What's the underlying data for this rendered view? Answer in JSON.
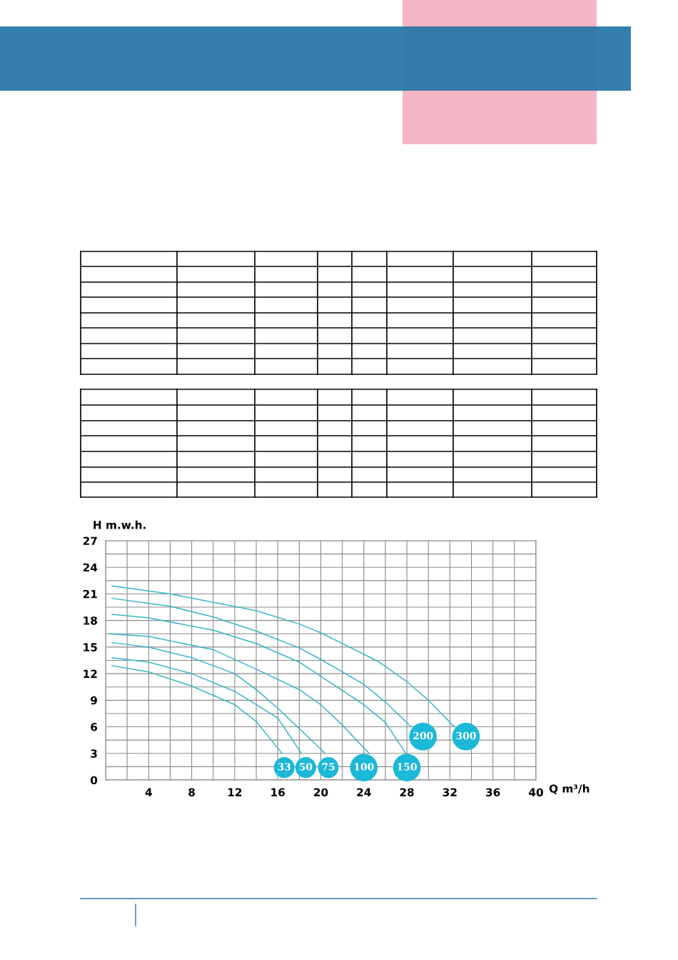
{
  "chart_data": {
    "type": "line",
    "ylabel": "H m.w.h.",
    "xlabel": "Q m³/h",
    "xlim": [
      0,
      40
    ],
    "ylim": [
      0,
      27
    ],
    "xticks": [
      4,
      8,
      12,
      16,
      20,
      24,
      28,
      32,
      36,
      40
    ],
    "yticks": [
      0,
      3,
      6,
      9,
      12,
      15,
      18,
      21,
      24,
      27
    ],
    "grid": true,
    "marker": "none",
    "line_style": "solid",
    "series": [
      {
        "color": "#3bb5c6",
        "x": [
          0.6,
          4,
          8,
          12,
          14,
          16.4
        ],
        "values": [
          12.9,
          12.2,
          10.6,
          8.5,
          6.6,
          3.0
        ]
      },
      {
        "color": "#3bb5c6",
        "x": [
          0.6,
          4,
          8,
          12,
          16,
          18.2
        ],
        "values": [
          13.8,
          13.3,
          12.0,
          10.0,
          7.0,
          3.0
        ]
      },
      {
        "color": "#3bb5c6",
        "x": [
          0.6,
          4,
          8,
          12,
          14,
          16,
          18,
          20.4
        ],
        "values": [
          15.5,
          15.0,
          13.8,
          12.0,
          10.2,
          8.1,
          5.8,
          3.0
        ]
      },
      {
        "color": "#3bb5c6",
        "x": [
          0.3,
          4,
          10,
          14,
          18,
          20,
          22,
          24.5
        ],
        "values": [
          16.5,
          16.2,
          14.7,
          12.5,
          10.2,
          8.5,
          6.2,
          3.0
        ]
      },
      {
        "color": "#3bb5c6",
        "x": [
          0.6,
          4,
          10,
          14,
          18,
          20,
          22,
          24,
          26,
          27.9
        ],
        "values": [
          18.7,
          18.3,
          16.9,
          15.4,
          13.3,
          11.7,
          10.1,
          8.5,
          6.5,
          3.0
        ]
      },
      {
        "color": "#3bb5c6",
        "x": [
          0.6,
          6,
          10,
          14,
          18,
          20,
          22,
          24,
          26,
          28.4
        ],
        "values": [
          20.5,
          19.6,
          18.4,
          16.8,
          14.9,
          13.6,
          12.2,
          10.8,
          8.8,
          6.0
        ]
      },
      {
        "color": "#3bb5c6",
        "x": [
          0.6,
          6,
          14,
          18,
          20,
          22,
          25.3,
          27.9,
          30,
          32.4
        ],
        "values": [
          21.9,
          21.0,
          19.1,
          17.6,
          16.6,
          15.4,
          13.4,
          11.2,
          9.0,
          6.0
        ]
      }
    ],
    "annotations": [
      {
        "text": "33",
        "x": 16.6,
        "y": 1.4
      },
      {
        "text": "50",
        "x": 18.6,
        "y": 1.4
      },
      {
        "text": "75",
        "x": 20.7,
        "y": 1.4
      },
      {
        "text": "100",
        "x": 24.0,
        "y": 1.4
      },
      {
        "text": "150",
        "x": 28.0,
        "y": 1.4
      },
      {
        "text": "200",
        "x": 29.5,
        "y": 4.9
      },
      {
        "text": "300",
        "x": 33.5,
        "y": 4.9
      }
    ]
  }
}
